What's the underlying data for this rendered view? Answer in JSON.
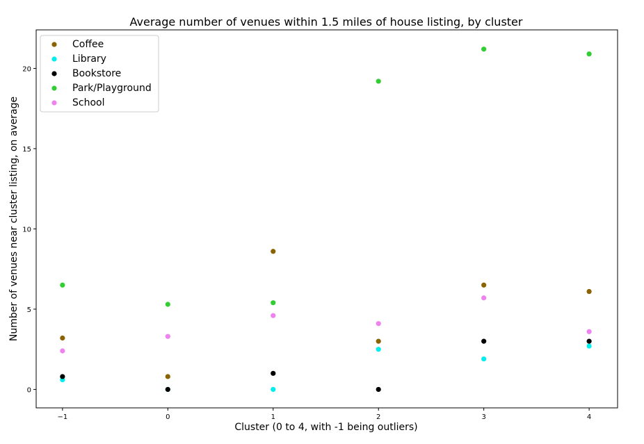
{
  "chart_data": {
    "type": "scatter",
    "title": "Average number of venues within 1.5 miles of house listing, by cluster",
    "xlabel": "Cluster (0 to 4, with -1 being outliers)",
    "ylabel": "Number of venues near cluster listing, on average",
    "xlim": [
      -1.25,
      4.27
    ],
    "ylim": [
      -1.15,
      22.4
    ],
    "xticks": [
      -1,
      0,
      1,
      2,
      3,
      4
    ],
    "xtick_labels": [
      "−1",
      "0",
      "1",
      "2",
      "3",
      "4"
    ],
    "yticks": [
      0,
      5,
      10,
      15,
      20
    ],
    "ytick_labels": [
      "0",
      "5",
      "10",
      "15",
      "20"
    ],
    "grid": false,
    "legend_position": "top-left",
    "x": [
      -1,
      0,
      1,
      2,
      3,
      4
    ],
    "series": [
      {
        "name": "Coffee",
        "color": "#8b6200",
        "values": [
          3.2,
          0.8,
          8.6,
          3.0,
          6.5,
          6.1
        ]
      },
      {
        "name": "Library",
        "color": "#00eeee",
        "values": [
          0.6,
          0.0,
          0.0,
          2.5,
          1.9,
          2.7
        ]
      },
      {
        "name": "Bookstore",
        "color": "#000000",
        "values": [
          0.8,
          0.0,
          1.0,
          0.0,
          3.0,
          3.0
        ]
      },
      {
        "name": "Park/Playground",
        "color": "#32cd32",
        "values": [
          6.5,
          5.3,
          5.4,
          19.2,
          21.2,
          20.9
        ]
      },
      {
        "name": "School",
        "color": "#ee82ee",
        "values": [
          2.4,
          3.3,
          4.6,
          4.1,
          5.7,
          3.6
        ]
      }
    ]
  }
}
